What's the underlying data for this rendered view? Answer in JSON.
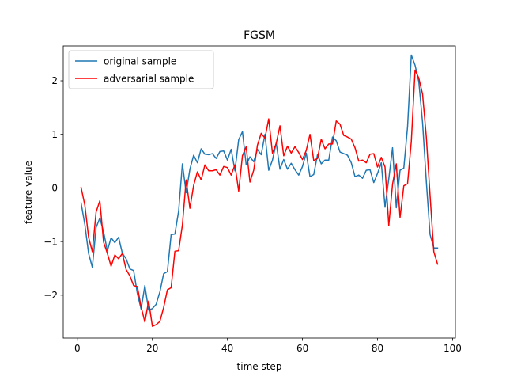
{
  "chart_data": {
    "type": "line",
    "title": "FGSM",
    "xlabel": "time step",
    "ylabel": "feature value",
    "xlim": [
      -3.75,
      100.75
    ],
    "ylim": [
      -2.8,
      2.65
    ],
    "xticks": [
      0,
      20,
      40,
      60,
      80,
      100
    ],
    "yticks": [
      -2,
      -1,
      0,
      1,
      2
    ],
    "xtick_labels": [
      "0",
      "20",
      "40",
      "60",
      "80",
      "100"
    ],
    "ytick_labels": [
      "−2",
      "−1",
      "0",
      "1",
      "2"
    ],
    "grid": false,
    "legend_position": "upper-left",
    "series": [
      {
        "name": "original sample",
        "color": "#1f77b4",
        "x": [
          1,
          2,
          3,
          4,
          5,
          6,
          7,
          8,
          9,
          10,
          11,
          12,
          13,
          14,
          15,
          16,
          17,
          18,
          19,
          20,
          21,
          22,
          23,
          24,
          25,
          26,
          27,
          28,
          29,
          30,
          31,
          32,
          33,
          34,
          35,
          36,
          37,
          38,
          39,
          40,
          41,
          42,
          43,
          44,
          45,
          46,
          47,
          48,
          49,
          50,
          51,
          52,
          53,
          54,
          55,
          56,
          57,
          58,
          59,
          60,
          61,
          62,
          63,
          64,
          65,
          66,
          67,
          68,
          69,
          70,
          71,
          72,
          73,
          74,
          75,
          76,
          77,
          78,
          79,
          80,
          81,
          82,
          83,
          84,
          85,
          86,
          87,
          88,
          89,
          90,
          91,
          92,
          93,
          94,
          95,
          96
        ],
        "y": [
          -0.28,
          -0.68,
          -1.22,
          -1.48,
          -0.74,
          -0.56,
          -0.82,
          -1.17,
          -0.93,
          -1.02,
          -0.92,
          -1.22,
          -1.32,
          -1.51,
          -1.54,
          -1.97,
          -2.26,
          -1.82,
          -2.28,
          -2.25,
          -2.17,
          -1.94,
          -1.6,
          -1.56,
          -0.87,
          -0.86,
          -0.43,
          0.45,
          -0.09,
          0.35,
          0.61,
          0.47,
          0.73,
          0.63,
          0.62,
          0.64,
          0.55,
          0.68,
          0.69,
          0.52,
          0.72,
          0.32,
          0.9,
          1.05,
          0.43,
          0.58,
          0.49,
          0.72,
          0.62,
          1.0,
          0.33,
          0.52,
          0.84,
          0.35,
          0.53,
          0.35,
          0.46,
          0.34,
          0.24,
          0.4,
          0.65,
          0.21,
          0.25,
          0.62,
          0.45,
          0.52,
          0.52,
          0.95,
          0.88,
          0.67,
          0.64,
          0.61,
          0.47,
          0.21,
          0.24,
          0.18,
          0.33,
          0.34,
          0.1,
          0.27,
          0.47,
          -0.36,
          0.17,
          0.75,
          -0.37,
          0.33,
          0.37,
          1.14,
          2.48,
          2.29,
          1.98,
          1.22,
          0.12,
          -0.87,
          -1.12,
          -1.12
        ]
      },
      {
        "name": "adversarial sample",
        "color": "#ff0000",
        "x": [
          1,
          2,
          3,
          4,
          5,
          6,
          7,
          8,
          9,
          10,
          11,
          12,
          13,
          14,
          15,
          16,
          17,
          18,
          19,
          20,
          21,
          22,
          23,
          24,
          25,
          26,
          27,
          28,
          29,
          30,
          31,
          32,
          33,
          34,
          35,
          36,
          37,
          38,
          39,
          40,
          41,
          42,
          43,
          44,
          45,
          46,
          47,
          48,
          49,
          50,
          51,
          52,
          53,
          54,
          55,
          56,
          57,
          58,
          59,
          60,
          61,
          62,
          63,
          64,
          65,
          66,
          67,
          68,
          69,
          70,
          71,
          72,
          73,
          74,
          75,
          76,
          77,
          78,
          79,
          80,
          81,
          82,
          83,
          84,
          85,
          86,
          87,
          88,
          89,
          90,
          91,
          92,
          93,
          94,
          95,
          96
        ],
        "y": [
          0.01,
          -0.32,
          -0.92,
          -1.19,
          -0.45,
          -0.24,
          -1.01,
          -1.22,
          -1.46,
          -1.25,
          -1.32,
          -1.22,
          -1.52,
          -1.64,
          -1.82,
          -1.84,
          -2.22,
          -2.5,
          -2.11,
          -2.58,
          -2.55,
          -2.49,
          -2.23,
          -1.9,
          -1.86,
          -1.18,
          -1.17,
          -0.69,
          0.15,
          -0.38,
          0.05,
          0.3,
          0.15,
          0.43,
          0.32,
          0.32,
          0.34,
          0.24,
          0.4,
          0.38,
          0.24,
          0.43,
          -0.06,
          0.6,
          0.77,
          0.11,
          0.33,
          0.8,
          1.02,
          0.93,
          1.29,
          0.65,
          0.83,
          1.16,
          0.6,
          0.78,
          0.65,
          0.77,
          0.66,
          0.53,
          0.7,
          1.0,
          0.51,
          0.55,
          0.91,
          0.73,
          0.82,
          0.82,
          1.25,
          1.19,
          0.98,
          0.95,
          0.91,
          0.75,
          0.5,
          0.52,
          0.47,
          0.63,
          0.64,
          0.39,
          0.57,
          0.39,
          -0.7,
          0.07,
          0.45,
          -0.55,
          0.04,
          0.08,
          0.87,
          2.2,
          2.05,
          1.75,
          0.95,
          -0.14,
          -1.19,
          -1.42
        ]
      }
    ]
  }
}
